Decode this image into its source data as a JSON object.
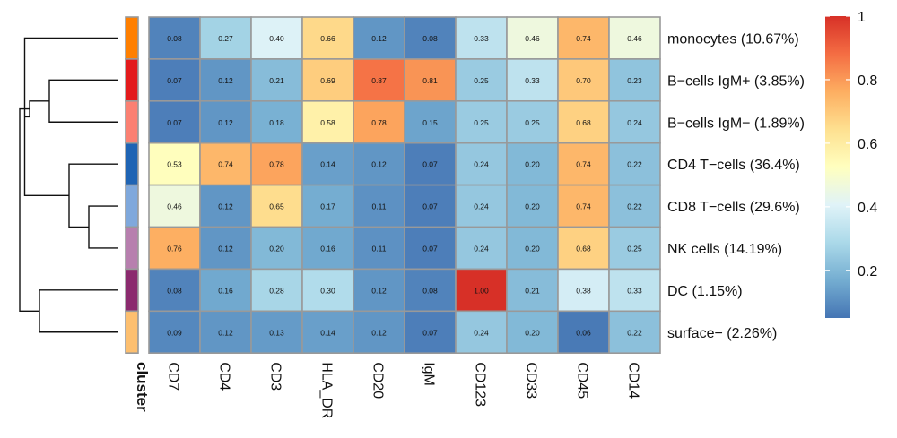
{
  "chart_data": {
    "type": "heatmap",
    "title": "",
    "columns": [
      "CD7",
      "CD4",
      "CD3",
      "HLA_DR",
      "CD20",
      "IgM",
      "CD123",
      "CD33",
      "CD45",
      "CD14"
    ],
    "rows": [
      {
        "label": "monocytes (10.67%)",
        "cluster_color": "#FF7F00",
        "values": [
          0.08,
          0.27,
          0.4,
          0.66,
          0.12,
          0.08,
          0.33,
          0.46,
          0.74,
          0.46
        ]
      },
      {
        "label": "B−cells IgM+ (3.85%)",
        "cluster_color": "#E31A1C",
        "values": [
          0.07,
          0.12,
          0.21,
          0.69,
          0.87,
          0.81,
          0.25,
          0.33,
          0.7,
          0.23
        ]
      },
      {
        "label": "B−cells IgM− (1.89%)",
        "cluster_color": "#FB8072",
        "values": [
          0.07,
          0.12,
          0.18,
          0.58,
          0.78,
          0.15,
          0.25,
          0.25,
          0.68,
          0.24
        ]
      },
      {
        "label": "CD4 T−cells (36.4%)",
        "cluster_color": "#1F64B4",
        "values": [
          0.53,
          0.74,
          0.78,
          0.14,
          0.12,
          0.07,
          0.24,
          0.2,
          0.74,
          0.22
        ]
      },
      {
        "label": "CD8 T−cells (29.6%)",
        "cluster_color": "#7FA8DC",
        "values": [
          0.46,
          0.12,
          0.65,
          0.17,
          0.11,
          0.07,
          0.24,
          0.2,
          0.74,
          0.22
        ]
      },
      {
        "label": "NK cells (14.19%)",
        "cluster_color": "#B77FAE",
        "values": [
          0.76,
          0.12,
          0.2,
          0.16,
          0.11,
          0.07,
          0.24,
          0.2,
          0.68,
          0.25
        ]
      },
      {
        "label": "DC (1.15%)",
        "cluster_color": "#8B2A6E",
        "values": [
          0.08,
          0.16,
          0.28,
          0.3,
          0.12,
          0.08,
          1.0,
          0.21,
          0.38,
          0.33
        ]
      },
      {
        "label": "surface− (2.26%)",
        "cluster_color": "#FDBF6F",
        "values": [
          0.09,
          0.12,
          0.13,
          0.14,
          0.12,
          0.07,
          0.24,
          0.2,
          0.06,
          0.22
        ]
      }
    ],
    "cluster_axis_label": "cluster",
    "colorbar": {
      "range": [
        0.05,
        1.0
      ],
      "ticks": [
        0.2,
        0.4,
        0.6,
        0.8,
        1.0
      ],
      "tick_labels": [
        "0.2",
        "0.4",
        "0.6",
        "0.8",
        "1"
      ],
      "colors": [
        "#4575B4",
        "#74ADD1",
        "#ABD9E9",
        "#E0F3F8",
        "#FFFFBF",
        "#FEE090",
        "#FDAE61",
        "#F46D43",
        "#D73027"
      ]
    },
    "dendrogram": {
      "merges": [
        [
          4,
          5
        ],
        [
          3,
          8
        ],
        [
          1,
          2
        ],
        [
          9,
          0
        ],
        [
          6,
          7
        ],
        [
          10,
          11
        ],
        [
          12,
          13
        ]
      ],
      "heights": [
        0.3,
        0.5,
        0.7,
        0.95,
        0.8,
        0.9,
        1.0
      ]
    },
    "cell_label_color": "#111111",
    "grid_color": "#999999"
  }
}
